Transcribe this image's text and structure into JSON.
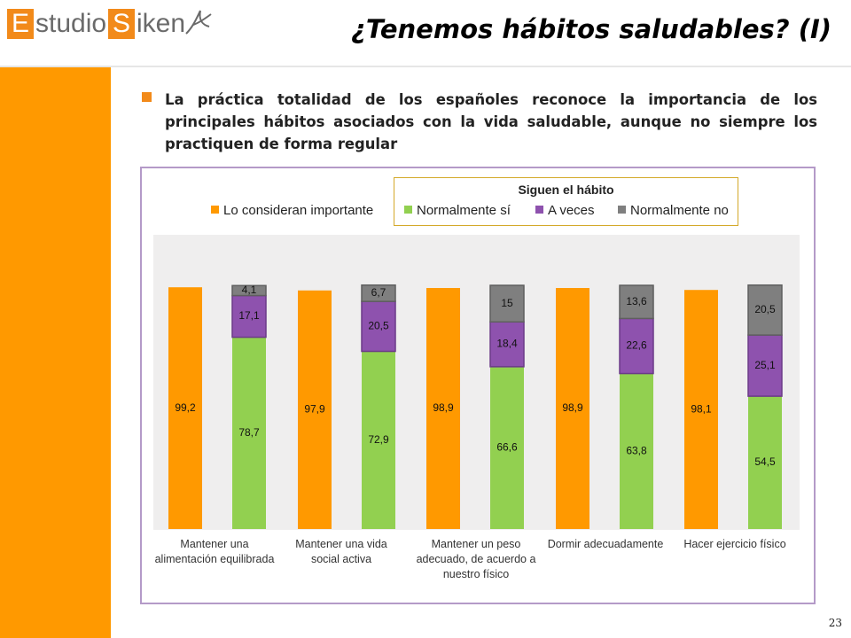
{
  "header": {
    "logo": {
      "first_letter": "E",
      "first_rest": "studio",
      "second_letter": "S",
      "second_rest": "iken"
    },
    "title": "¿Tenemos hábitos saludables? (I)"
  },
  "bullet": {
    "text": "La práctica totalidad de los españoles reconoce la importancia de los principales hábitos asociados con la vida saludable, aunque no siempre los practiquen de forma regular"
  },
  "page_number": "23",
  "colors": {
    "orange": "#FF9900",
    "green": "#92D050",
    "purple": "#8E52AE",
    "gray": "#7F7F7F",
    "accent": "#F28A1A"
  },
  "chart_data": {
    "type": "bar",
    "title": "",
    "legend": {
      "important_label": "Lo consideran importante",
      "group_title": "Siguen el hábito",
      "habit_labels": [
        "Normalmente sí",
        "A veces",
        "Normalmente no"
      ]
    },
    "categories": [
      "Mantener una alimentación equilibrada",
      "Mantener una vida social activa",
      "Mantener un peso adecuado, de acuerdo a nuestro físico",
      "Dormir adecuadamente",
      "Hacer ejercicio físico"
    ],
    "series": [
      {
        "name": "Lo consideran importante",
        "values": [
          "99,2",
          "97,9",
          "98,9",
          "98,9",
          "98,1"
        ]
      },
      {
        "name": "Normalmente sí",
        "values": [
          "78,7",
          "72,9",
          "66,6",
          "63,8",
          "54,5"
        ]
      },
      {
        "name": "A veces",
        "values": [
          "17,1",
          "20,5",
          "18,4",
          "22,6",
          "25,1"
        ]
      },
      {
        "name": "Normalmente no",
        "values": [
          "4,1",
          "6,7",
          "15",
          "13,6",
          "20,5"
        ]
      }
    ],
    "ylim": [
      0,
      100
    ],
    "grid": false,
    "legend_placement": "top"
  }
}
